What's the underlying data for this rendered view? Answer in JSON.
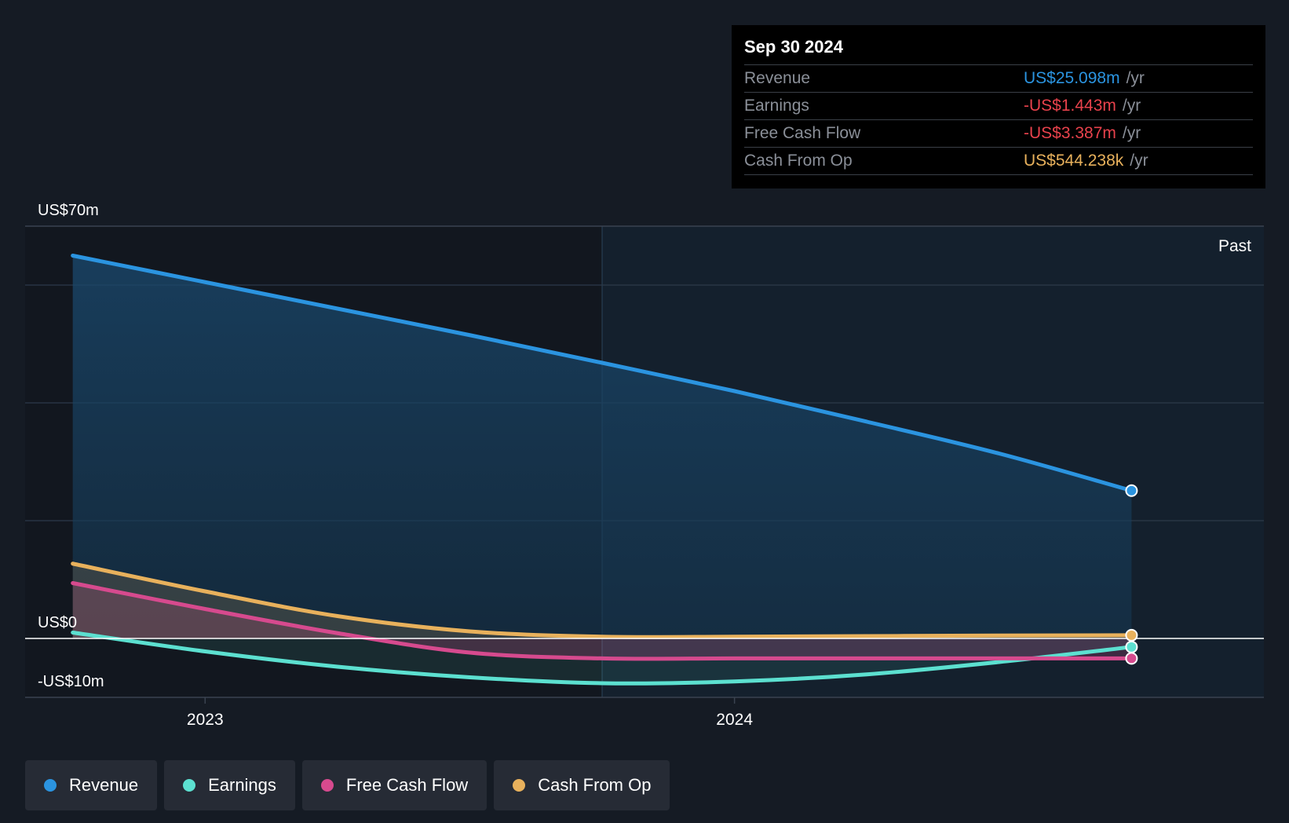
{
  "tooltip": {
    "date": "Sep 30 2024",
    "rows": [
      {
        "label": "Revenue",
        "value": "US$25.098m",
        "unit": "/yr",
        "color": "#2b94e0"
      },
      {
        "label": "Earnings",
        "value": "-US$1.443m",
        "unit": "/yr",
        "color": "#e8424c"
      },
      {
        "label": "Free Cash Flow",
        "value": "-US$3.387m",
        "unit": "/yr",
        "color": "#e8424c"
      },
      {
        "label": "Cash From Op",
        "value": "US$544.238k",
        "unit": "/yr",
        "color": "#e8b15c"
      }
    ]
  },
  "past_label": "Past",
  "legend": [
    {
      "label": "Revenue",
      "color": "#2b94e0"
    },
    {
      "label": "Earnings",
      "color": "#5ce0d0"
    },
    {
      "label": "Free Cash Flow",
      "color": "#d64a8e"
    },
    {
      "label": "Cash From Op",
      "color": "#e8b15c"
    }
  ],
  "chart_data": {
    "type": "area",
    "title": "",
    "xlabel": "",
    "ylabel": "",
    "ylim": [
      -10,
      70
    ],
    "y_tick_labels": [
      {
        "value": 70,
        "label": "US$70m"
      },
      {
        "value": 0,
        "label": "US$0"
      },
      {
        "value": -10,
        "label": "-US$10m"
      }
    ],
    "gridlines_y": [
      60,
      40,
      20
    ],
    "x_tick_labels": [
      {
        "value": 2023.0,
        "label": "2023"
      },
      {
        "value": 2024.0,
        "label": "2024"
      }
    ],
    "xlim": [
      2022.66,
      2025.0
    ],
    "past_divider_x": 2023.75,
    "series": [
      {
        "name": "Revenue",
        "color": "#2b94e0",
        "x": [
          2022.75,
          2023.0,
          2023.25,
          2023.5,
          2023.75,
          2024.0,
          2024.25,
          2024.5,
          2024.75
        ],
        "y": [
          65.0,
          60.5,
          56.0,
          51.5,
          46.8,
          42.0,
          36.8,
          31.4,
          25.1
        ]
      },
      {
        "name": "Earnings",
        "color": "#5ce0d0",
        "x": [
          2022.75,
          2023.0,
          2023.25,
          2023.5,
          2023.75,
          2024.0,
          2024.25,
          2024.5,
          2024.75
        ],
        "y": [
          1.0,
          -2.2,
          -4.8,
          -6.6,
          -7.6,
          -7.3,
          -6.1,
          -4.0,
          -1.443
        ]
      },
      {
        "name": "Free Cash Flow",
        "color": "#d64a8e",
        "x": [
          2022.75,
          2023.0,
          2023.25,
          2023.5,
          2023.75,
          2024.0,
          2024.25,
          2024.5,
          2024.75
        ],
        "y": [
          9.4,
          5.0,
          0.9,
          -2.4,
          -3.387,
          -3.387,
          -3.387,
          -3.387,
          -3.387
        ]
      },
      {
        "name": "Cash From Op",
        "color": "#e8b15c",
        "x": [
          2022.75,
          2023.0,
          2023.25,
          2023.5,
          2023.75,
          2024.0,
          2024.25,
          2024.5,
          2024.75
        ],
        "y": [
          12.7,
          8.0,
          3.8,
          1.2,
          0.3,
          0.3,
          0.4,
          0.5,
          0.544
        ]
      }
    ],
    "legend_position": "bottom-left"
  }
}
